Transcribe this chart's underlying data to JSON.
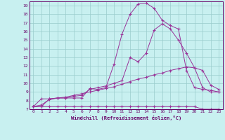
{
  "xlabel": "Windchill (Refroidissement éolien,°C)",
  "bg_color": "#c8f0f0",
  "line_color": "#993399",
  "xlim": [
    -0.5,
    23.5
  ],
  "ylim": [
    7,
    19.5
  ],
  "yticks": [
    7,
    8,
    9,
    10,
    11,
    12,
    13,
    14,
    15,
    16,
    17,
    18,
    19
  ],
  "xticks": [
    0,
    1,
    2,
    3,
    4,
    5,
    6,
    7,
    8,
    9,
    10,
    11,
    12,
    13,
    14,
    15,
    16,
    17,
    18,
    19,
    20,
    21,
    22,
    23
  ],
  "line1_x": [
    0,
    1,
    2,
    3,
    4,
    5,
    6,
    7,
    8,
    9,
    10,
    11,
    12,
    13,
    14,
    15,
    16,
    17,
    18,
    19,
    20,
    21,
    22,
    23
  ],
  "line1_y": [
    7.3,
    7.3,
    7.3,
    7.3,
    7.3,
    7.3,
    7.3,
    7.3,
    7.3,
    7.3,
    7.3,
    7.3,
    7.3,
    7.3,
    7.3,
    7.3,
    7.3,
    7.3,
    7.3,
    7.3,
    7.3,
    7.0,
    7.0,
    7.0
  ],
  "line2_x": [
    0,
    1,
    2,
    3,
    4,
    5,
    6,
    7,
    8,
    9,
    10,
    11,
    12,
    13,
    14,
    15,
    16,
    17,
    18,
    19,
    20,
    21,
    22,
    23
  ],
  "line2_y": [
    7.3,
    7.5,
    8.1,
    8.3,
    8.4,
    8.6,
    8.8,
    9.0,
    9.2,
    9.4,
    9.6,
    9.9,
    10.2,
    10.5,
    10.7,
    11.0,
    11.2,
    11.5,
    11.7,
    11.9,
    11.8,
    11.5,
    9.8,
    9.3
  ],
  "line3_x": [
    0,
    1,
    2,
    3,
    4,
    5,
    6,
    7,
    8,
    9,
    10,
    11,
    12,
    13,
    14,
    15,
    16,
    17,
    18,
    19,
    20,
    21,
    22,
    23
  ],
  "line3_y": [
    7.3,
    8.2,
    8.2,
    8.3,
    8.3,
    8.5,
    8.6,
    9.3,
    9.5,
    9.7,
    10.0,
    10.3,
    13.0,
    12.5,
    13.5,
    16.2,
    16.9,
    16.3,
    15.0,
    13.5,
    11.8,
    9.5,
    9.0,
    9.0
  ],
  "line4_x": [
    0,
    1,
    2,
    3,
    4,
    5,
    6,
    7,
    8,
    9,
    10,
    11,
    12,
    13,
    14,
    15,
    16,
    17,
    18,
    19,
    20,
    21,
    22,
    23
  ],
  "line4_y": [
    7.3,
    7.3,
    8.2,
    8.3,
    8.3,
    8.3,
    8.3,
    9.4,
    9.3,
    9.5,
    12.2,
    15.7,
    18.0,
    19.2,
    19.3,
    18.7,
    17.3,
    16.7,
    16.3,
    11.5,
    9.5,
    9.3,
    9.2,
    9.0
  ],
  "grid_color": "#99cccc",
  "font_color": "#660066",
  "font_family": "monospace"
}
